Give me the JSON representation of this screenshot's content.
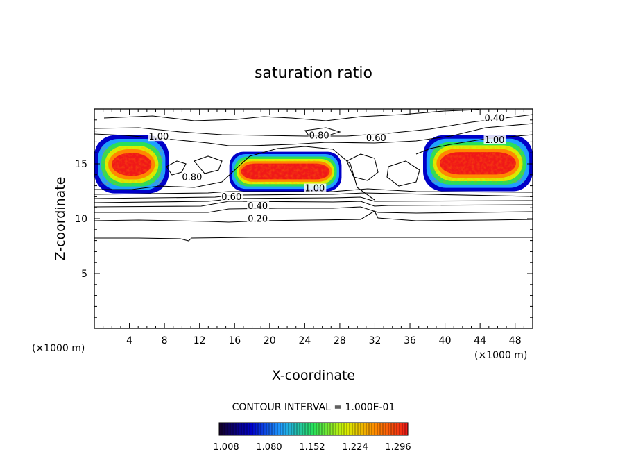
{
  "chart_data": {
    "type": "contour",
    "title": "saturation ratio",
    "xlabel": "X-coordinate",
    "ylabel": "Z-coordinate",
    "x_unit": "(×1000 m)",
    "y_unit": "(×1000 m)",
    "xlim": [
      0,
      50
    ],
    "ylim": [
      0,
      20
    ],
    "x_ticks": [
      4,
      8,
      12,
      16,
      20,
      24,
      28,
      32,
      36,
      40,
      44,
      48
    ],
    "y_ticks": [
      5,
      10,
      15
    ],
    "contour_interval_text": "CONTOUR INTERVAL = 1.000E-01",
    "contour_labels": [
      {
        "text": "0.20",
        "x": 17.5,
        "z": 9.7
      },
      {
        "text": "0.40",
        "x": 17.5,
        "z": 10.9
      },
      {
        "text": "0.40",
        "x": 44.5,
        "z": 18.9
      },
      {
        "text": "0.60",
        "x": 14.5,
        "z": 11.7
      },
      {
        "text": "0.60",
        "x": 31.0,
        "z": 17.1
      },
      {
        "text": "0.80",
        "x": 24.5,
        "z": 17.3
      },
      {
        "text": "0.80",
        "x": 10.0,
        "z": 13.5
      },
      {
        "text": "1.00",
        "x": 6.2,
        "z": 17.2
      },
      {
        "text": "1.00",
        "x": 24.0,
        "z": 12.5
      },
      {
        "text": "1.00",
        "x": 44.5,
        "z": 16.9
      }
    ],
    "shaded_regions": [
      {
        "name": "left",
        "x_range": [
          0,
          8.5
        ],
        "z_range": [
          12.3,
          17.6
        ]
      },
      {
        "name": "center",
        "x_range": [
          15.4,
          28.2
        ],
        "z_range": [
          12.5,
          16.1
        ]
      },
      {
        "name": "right",
        "x_range": [
          37.5,
          50
        ],
        "z_range": [
          12.5,
          17.6
        ]
      }
    ],
    "colorbar": {
      "ticks": [
        "1.008",
        "1.080",
        "1.152",
        "1.224",
        "1.296"
      ],
      "colors": [
        "#14002a",
        "#0000c8",
        "#1fa0ff",
        "#28e05a",
        "#d8f000",
        "#ff8800",
        "#f01818"
      ]
    }
  }
}
